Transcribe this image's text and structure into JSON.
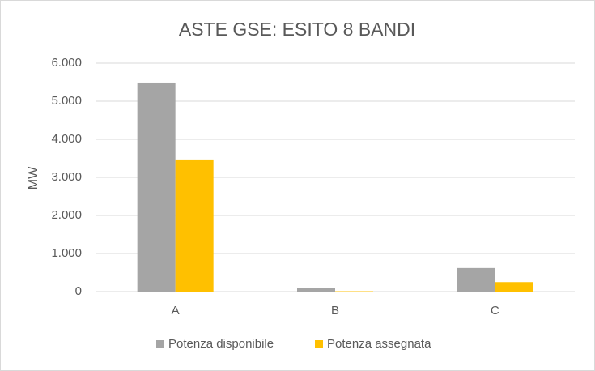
{
  "chart_data": {
    "type": "bar",
    "title": "ASTE GSE: ESITO 8 BANDI",
    "y_label": "MW",
    "categories": [
      "A",
      "B",
      "C"
    ],
    "series": [
      {
        "name": "Potenza disponibile",
        "color": "#a5a5a5",
        "values": [
          5490,
          100,
          620
        ]
      },
      {
        "name": "Potenza assegnata",
        "color": "#ffc000",
        "values": [
          3470,
          10,
          250
        ]
      }
    ],
    "ylim": [
      0,
      6000
    ],
    "yticks": [
      0,
      {
        "value": 1000,
        "label": "1.000"
      },
      {
        "value": 2000,
        "label": "2.000"
      },
      {
        "value": 3000,
        "label": "3.000"
      },
      {
        "value": 4000,
        "label": "4.000"
      },
      {
        "value": 5000,
        "label": "5.000"
      },
      {
        "value": 6000,
        "label": "6.000"
      }
    ],
    "grid": true,
    "legend": "bottom"
  }
}
